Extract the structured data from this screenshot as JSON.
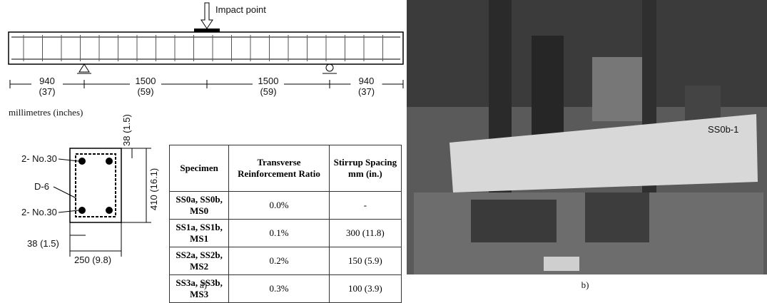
{
  "diagram": {
    "impact_label": "Impact point",
    "dimensions": [
      {
        "mm": "940",
        "in": "(37)"
      },
      {
        "mm": "1500",
        "in": "(59)"
      },
      {
        "mm": "1500",
        "in": "(59)"
      },
      {
        "mm": "940",
        "in": "(37)"
      }
    ],
    "units": "millimetres (inches)",
    "section": {
      "top_cover": "38 (1.5)",
      "height": "410 (16.1)",
      "top_bars": "2- No.30",
      "stirrup": "D-6",
      "bottom_bars": "2- No.30",
      "side_cover": "38 (1.5)",
      "width": "250 (9.8)"
    }
  },
  "table": {
    "header": [
      "Specimen",
      "Transverse Reinforcement Ratio",
      "Stirrup Spacing mm (in.)"
    ],
    "rows": [
      [
        "SS0a, SS0b, MS0",
        "0.0%",
        "-"
      ],
      [
        "SS1a, SS1b, MS1",
        "0.1%",
        "300 (11.8)"
      ],
      [
        "SS2a, SS2b, MS2",
        "0.2%",
        "150 (5.9)"
      ],
      [
        "SS3a, SS3b, MS3",
        "0.3%",
        "100 (3.9)"
      ]
    ]
  },
  "photo": {
    "label": "SS0b-1"
  },
  "captions": [
    "a)",
    "b)"
  ]
}
